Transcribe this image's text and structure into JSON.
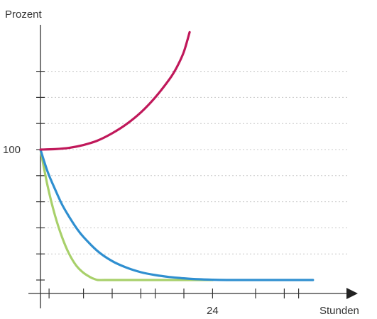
{
  "chart_data": {
    "type": "line",
    "title": "",
    "xlabel": "Stunden",
    "ylabel": "Prozent",
    "xlim": [
      0,
      38
    ],
    "ylim": [
      -13,
      180
    ],
    "x_ticks": [
      0,
      1.2,
      6,
      10,
      14,
      16,
      20,
      24,
      30,
      34,
      36
    ],
    "x_tick_labels": [
      {
        "x": 24,
        "label": "24"
      }
    ],
    "y_ticks": [
      0,
      20,
      40,
      60,
      80,
      100,
      120,
      140,
      160
    ],
    "y_tick_labels": [
      {
        "y": 100,
        "label": "100"
      }
    ],
    "grid": "horizontal dotted",
    "series": [
      {
        "color": "#c0185a",
        "x": [
          0,
          2,
          4,
          6,
          8,
          10,
          12,
          14,
          16,
          18,
          19,
          20,
          20.8
        ],
        "y": [
          100,
          100.3,
          101.3,
          103.5,
          107,
          112.5,
          119.5,
          128.5,
          140,
          154,
          163,
          175,
          190
        ]
      },
      {
        "color": "#2f8fd0",
        "x": [
          0,
          1,
          2,
          3,
          4,
          5,
          6,
          8,
          10,
          12,
          14,
          16,
          18,
          20,
          22,
          24,
          26,
          30,
          34,
          38
        ],
        "y": [
          100,
          83,
          70,
          58,
          48.5,
          40,
          33,
          22,
          14.5,
          9.5,
          6,
          3.8,
          2.3,
          1.3,
          0.6,
          0.2,
          0,
          0,
          0,
          0
        ]
      },
      {
        "color": "#a8d06a",
        "x": [
          0,
          1,
          2,
          3,
          4,
          5,
          6,
          7,
          7.5,
          8,
          9,
          12,
          16,
          20,
          24
        ],
        "y": [
          100,
          72,
          50,
          33,
          20,
          11,
          5.5,
          2,
          0.8,
          0,
          0,
          0,
          0,
          0,
          0
        ]
      }
    ]
  }
}
